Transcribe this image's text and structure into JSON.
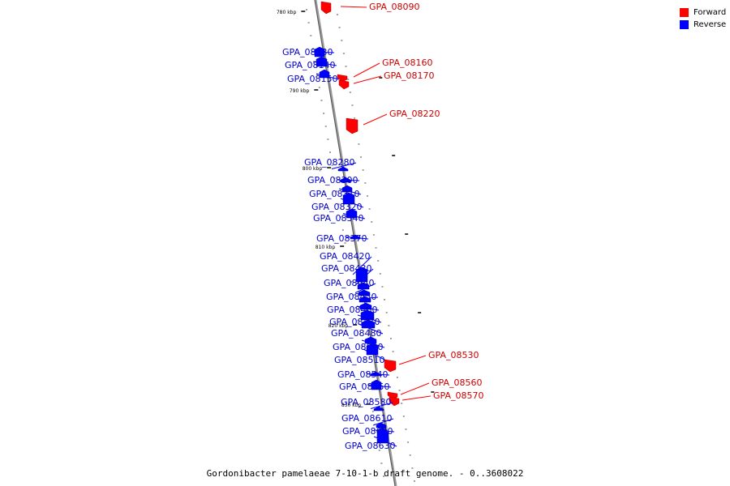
{
  "legend": {
    "forward_label": "Forward",
    "reverse_label": "Reverse",
    "forward_color": "#ff0000",
    "reverse_color": "#0000ff"
  },
  "caption": "Gordonibacter pamelaeae 7-10-1-b draft genome. - 0..3608022",
  "axis": {
    "major_ticks": [
      {
        "label": "780 kbp"
      },
      {
        "label": "790 kbp"
      },
      {
        "label": "800 kbp"
      },
      {
        "label": "810 kbp"
      },
      {
        "label": "820 kbp"
      },
      {
        "label": "830 kbp"
      }
    ]
  },
  "genes": [
    {
      "name": "GPA_08090",
      "strand": "forward"
    },
    {
      "name": "GPA_08130",
      "strand": "reverse"
    },
    {
      "name": "GPA_08140",
      "strand": "reverse"
    },
    {
      "name": "GPA_08150",
      "strand": "reverse"
    },
    {
      "name": "GPA_08160",
      "strand": "forward"
    },
    {
      "name": "GPA_08170",
      "strand": "forward"
    },
    {
      "name": "GPA_08220",
      "strand": "forward"
    },
    {
      "name": "GPA_08280",
      "strand": "reverse"
    },
    {
      "name": "GPA_08300",
      "strand": "reverse"
    },
    {
      "name": "GPA_08310",
      "strand": "reverse"
    },
    {
      "name": "GPA_08320",
      "strand": "reverse"
    },
    {
      "name": "GPA_08340",
      "strand": "reverse"
    },
    {
      "name": "GPA_08370",
      "strand": "reverse"
    },
    {
      "name": "GPA_08420",
      "strand": "reverse"
    },
    {
      "name": "GPA_08430",
      "strand": "reverse"
    },
    {
      "name": "GPA_08440",
      "strand": "reverse"
    },
    {
      "name": "GPA_08450",
      "strand": "reverse"
    },
    {
      "name": "GPA_08460",
      "strand": "reverse"
    },
    {
      "name": "GPA_08470",
      "strand": "reverse"
    },
    {
      "name": "GPA_08480",
      "strand": "reverse"
    },
    {
      "name": "GPA_08500",
      "strand": "reverse"
    },
    {
      "name": "GPA_08510",
      "strand": "reverse"
    },
    {
      "name": "GPA_08530",
      "strand": "forward"
    },
    {
      "name": "GPA_08540",
      "strand": "reverse"
    },
    {
      "name": "GPA_08550",
      "strand": "reverse"
    },
    {
      "name": "GPA_08560",
      "strand": "forward"
    },
    {
      "name": "GPA_08570",
      "strand": "forward"
    },
    {
      "name": "GPA_08580",
      "strand": "reverse"
    },
    {
      "name": "GPA_08610",
      "strand": "reverse"
    },
    {
      "name": "GPA_08620",
      "strand": "reverse"
    },
    {
      "name": "GPA_08630",
      "strand": "reverse"
    }
  ]
}
